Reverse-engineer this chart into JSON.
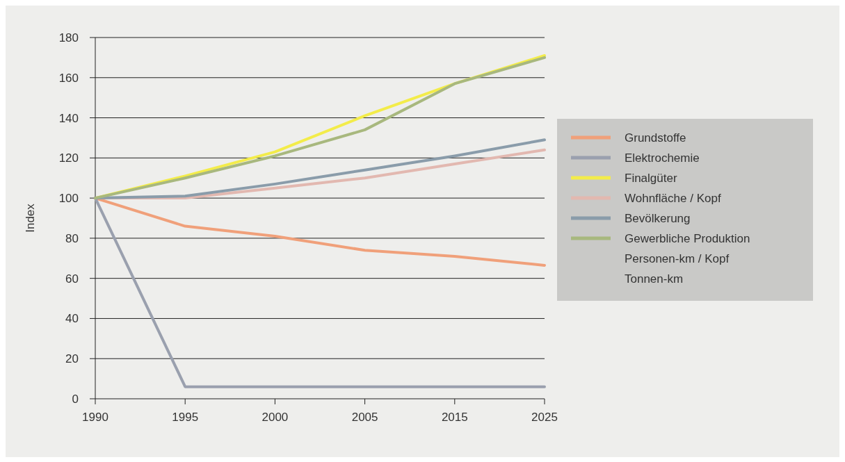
{
  "chart_data": {
    "type": "line",
    "ylabel": "Index",
    "categories": [
      "1990",
      "1995",
      "2000",
      "2005",
      "2015",
      "2025"
    ],
    "ylim": [
      0,
      180
    ],
    "yticks": [
      0,
      20,
      40,
      60,
      80,
      100,
      120,
      140,
      160,
      180
    ],
    "grid": "y",
    "legend": "right",
    "line_style": "solid",
    "series": [
      {
        "name": "Grundstoffe",
        "color": "#f0a07a",
        "values": [
          100,
          86,
          81,
          74,
          71,
          66.5
        ]
      },
      {
        "name": "Elektrochemie",
        "color": "#9aa0ae",
        "values": [
          100,
          6,
          6,
          6,
          6,
          6
        ]
      },
      {
        "name": "Finalgüter",
        "color": "#f3ec4a",
        "values": [
          100,
          111,
          123,
          141,
          157,
          171
        ]
      },
      {
        "name": "Wohnfläche / Kopf",
        "color": "#e2b8b0",
        "values": [
          100,
          100,
          105,
          110,
          117,
          124
        ]
      },
      {
        "name": "Bevölkerung",
        "color": "#8a9caa",
        "values": [
          100,
          101,
          107,
          114,
          121,
          129
        ]
      },
      {
        "name": "Gewerbliche Produktion",
        "color": "#a8b87e",
        "values": [
          100,
          110,
          121,
          134,
          157,
          170
        ]
      }
    ],
    "annotations": [
      "Personen-km / Kopf",
      "Tonnen-km"
    ]
  }
}
